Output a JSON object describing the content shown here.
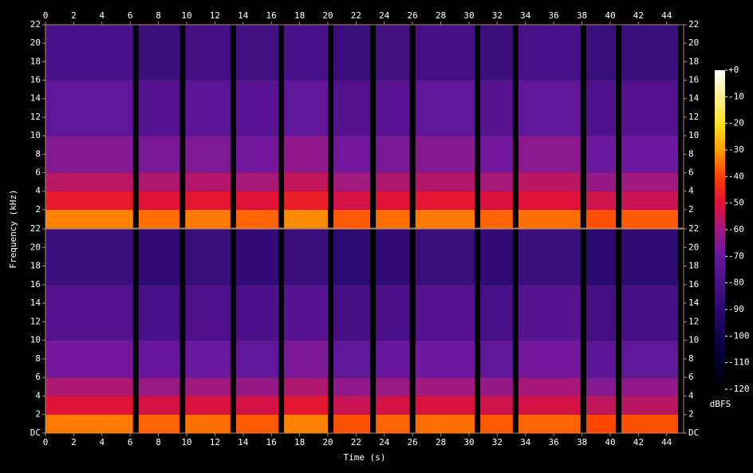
{
  "chart_data": {
    "type": "spectrogram",
    "xlabel": "Time (s)",
    "ylabel": "Frequency (kHz)",
    "xlim": [
      0,
      45.2
    ],
    "xticks": [
      0,
      2,
      4,
      6,
      8,
      10,
      12,
      14,
      16,
      18,
      20,
      22,
      24,
      26,
      28,
      30,
      32,
      34,
      36,
      38,
      40,
      42,
      44
    ],
    "ylim": [
      0,
      22
    ],
    "segments": [
      [
        0,
        6.2
      ],
      [
        6.6,
        9.5
      ],
      [
        9.9,
        13.1
      ],
      [
        13.5,
        16.5
      ],
      [
        16.9,
        20.0
      ],
      [
        20.4,
        23.0
      ],
      [
        23.4,
        25.8
      ],
      [
        26.2,
        30.4
      ],
      [
        30.8,
        33.1
      ],
      [
        33.5,
        37.9
      ],
      [
        38.3,
        40.4
      ],
      [
        40.8,
        44.8
      ]
    ],
    "bands": [
      0,
      2,
      4,
      6,
      10,
      16,
      22
    ],
    "panels": [
      {
        "yticks": [
          2,
          4,
          6,
          8,
          10,
          12,
          14,
          16,
          18,
          20,
          22
        ],
        "z": [
          [
            -33,
            -35,
            -34,
            -36,
            -32,
            -37,
            -35,
            -34,
            -36,
            -35,
            -38,
            -37
          ],
          [
            -48,
            -50,
            -49,
            -50,
            -47,
            -52,
            -50,
            -49,
            -51,
            -50,
            -53,
            -54
          ],
          [
            -56,
            -58,
            -57,
            -59,
            -55,
            -60,
            -58,
            -57,
            -59,
            -56,
            -62,
            -60
          ],
          [
            -65,
            -67,
            -66,
            -68,
            -63,
            -68,
            -67,
            -65,
            -68,
            -64,
            -70,
            -69
          ],
          [
            -73,
            -76,
            -74,
            -75,
            -72,
            -77,
            -75,
            -73,
            -76,
            -72,
            -78,
            -77
          ],
          [
            -80,
            -84,
            -82,
            -83,
            -80,
            -85,
            -83,
            -81,
            -84,
            -80,
            -86,
            -85
          ]
        ]
      },
      {
        "yticks": [
          {
            "value": 0,
            "label": "DC"
          },
          2,
          4,
          6,
          8,
          10,
          12,
          14,
          16,
          18,
          20,
          22
        ],
        "z": [
          [
            -34,
            -36,
            -35,
            -37,
            -33,
            -38,
            -36,
            -35,
            -37,
            -36,
            -39,
            -38
          ],
          [
            -50,
            -52,
            -51,
            -52,
            -49,
            -54,
            -52,
            -51,
            -53,
            -52,
            -55,
            -56
          ],
          [
            -58,
            -61,
            -60,
            -62,
            -58,
            -63,
            -61,
            -60,
            -62,
            -59,
            -65,
            -63
          ],
          [
            -68,
            -71,
            -70,
            -72,
            -67,
            -72,
            -71,
            -69,
            -72,
            -68,
            -74,
            -73
          ],
          [
            -77,
            -80,
            -78,
            -79,
            -76,
            -81,
            -79,
            -77,
            -80,
            -76,
            -82,
            -81
          ],
          [
            -84,
            -88,
            -86,
            -87,
            -84,
            -89,
            -87,
            -85,
            -88,
            -84,
            -90,
            -89
          ]
        ]
      }
    ],
    "colorbar": {
      "label": "dBFS",
      "lim": [
        -120,
        0
      ],
      "ticks": [
        {
          "value": 0,
          "label": "+0"
        },
        -10,
        -20,
        -30,
        -40,
        -50,
        -60,
        -70,
        -80,
        -90,
        -100,
        -110,
        -120
      ]
    }
  }
}
